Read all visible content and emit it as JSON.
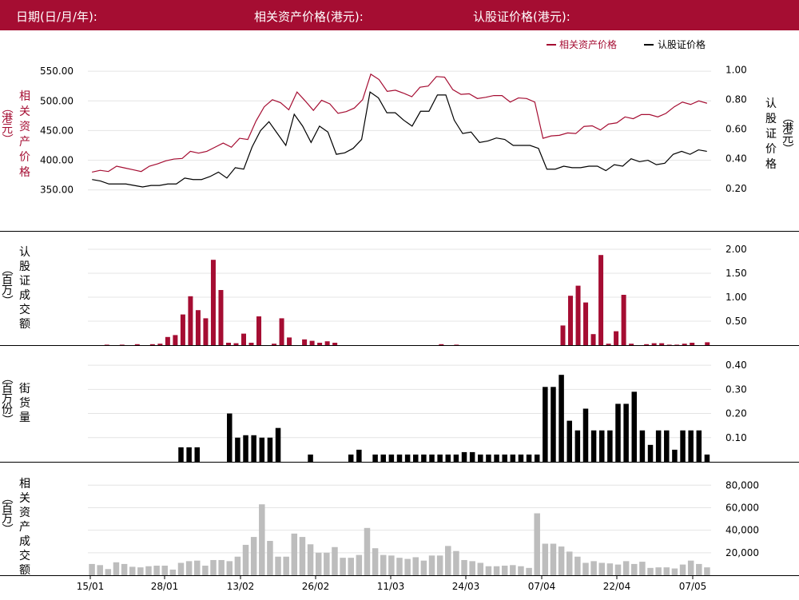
{
  "header": {
    "date_label": "日期(日/月/年):",
    "asset_price_label": "相关资产价格(港元):",
    "warrant_price_label": "认股证价格(港元):"
  },
  "colors": {
    "asset": "#a50d32",
    "warrant": "#000000",
    "outstanding": "#000000",
    "asset_volume": "#bdbdbd",
    "header_bg": "#a50d32"
  },
  "chart_data": [
    {
      "type": "line",
      "legend": [
        "相关资产价格",
        "认股证价格"
      ],
      "legend_placement": "top-right",
      "ylabel_left": "相关资产价格（港元）",
      "ylabel_right": "认股证价格（港元）",
      "yticks_left": [
        "550.00",
        "500.00",
        "450.00",
        "400.00",
        "350.00"
      ],
      "yticks_right": [
        "1.00",
        "0.80",
        "0.60",
        "0.40",
        "0.20"
      ],
      "ylim_left": [
        320,
        565
      ],
      "ylim_right": [
        0.07,
        1.05
      ],
      "grid": true,
      "series": [
        {
          "name": "相关资产价格",
          "axis": "left",
          "values": [
            380,
            383,
            381,
            390,
            387,
            384,
            381,
            390,
            394,
            399,
            402,
            403,
            415,
            412,
            415,
            422,
            429,
            422,
            437,
            435,
            466,
            490,
            502,
            497,
            485,
            515,
            500,
            484,
            501,
            495,
            479,
            482,
            488,
            502,
            545,
            536,
            516,
            518,
            513,
            507,
            523,
            525,
            541,
            540,
            519,
            511,
            512,
            504,
            506,
            509,
            509,
            498,
            505,
            504,
            498,
            437,
            441,
            442,
            446,
            445,
            457,
            458,
            451,
            461,
            463,
            473,
            470,
            477,
            477,
            473,
            479,
            490,
            498,
            494,
            500,
            496
          ]
        },
        {
          "name": "认股证价格",
          "axis": "right",
          "values": [
            0.26,
            0.25,
            0.23,
            0.23,
            0.23,
            0.22,
            0.21,
            0.22,
            0.22,
            0.23,
            0.23,
            0.27,
            0.26,
            0.26,
            0.28,
            0.31,
            0.27,
            0.34,
            0.33,
            0.48,
            0.59,
            0.65,
            0.57,
            0.49,
            0.7,
            0.62,
            0.51,
            0.62,
            0.58,
            0.43,
            0.44,
            0.47,
            0.53,
            0.85,
            0.81,
            0.71,
            0.71,
            0.66,
            0.62,
            0.72,
            0.72,
            0.83,
            0.83,
            0.66,
            0.57,
            0.58,
            0.51,
            0.52,
            0.54,
            0.53,
            0.49,
            0.49,
            0.49,
            0.47,
            0.33,
            0.33,
            0.35,
            0.34,
            0.34,
            0.35,
            0.35,
            0.32,
            0.36,
            0.35,
            0.4,
            0.38,
            0.39,
            0.36,
            0.37,
            0.43,
            0.45,
            0.43,
            0.46,
            0.45
          ]
        }
      ]
    },
    {
      "type": "bar",
      "ylabel_left": "认股证成交额（百万）",
      "yticks_right": [
        "2.00",
        "1.50",
        "1.00",
        "0.50"
      ],
      "ylim": [
        0,
        2.2
      ],
      "grid": true,
      "series": [
        {
          "name": "",
          "values": [
            0,
            0,
            0.01,
            0,
            0.01,
            0,
            0.02,
            0,
            0.02,
            0.03,
            0.17,
            0.21,
            0.64,
            1.02,
            0.73,
            0.56,
            1.78,
            1.15,
            0.05,
            0.04,
            0.24,
            0.05,
            0.6,
            0,
            0.03,
            0.56,
            0.16,
            0,
            0.12,
            0.09,
            0.05,
            0.08,
            0.05,
            0,
            0,
            0,
            0,
            0,
            0,
            0,
            0,
            0,
            0,
            0,
            0,
            0,
            0.02,
            0,
            0.01,
            0,
            0,
            0,
            0,
            0,
            0,
            0,
            0,
            0,
            0,
            0,
            0,
            0,
            0.41,
            1.03,
            1.24,
            0.89,
            0.23,
            1.88,
            0.03,
            0.29,
            1.05,
            0.03,
            0,
            0.02,
            0.04,
            0.04,
            0.01,
            0.01,
            0.03,
            0.05,
            0,
            0.06
          ]
        }
      ]
    },
    {
      "type": "bar",
      "ylabel_left": "街货量（百万份）",
      "yticks_right": [
        "0.40",
        "0.30",
        "0.20",
        "0.10"
      ],
      "ylim": [
        0,
        0.44
      ],
      "grid": true,
      "series": [
        {
          "name": "",
          "values": [
            0,
            0,
            0,
            0,
            0,
            0,
            0,
            0,
            0,
            0,
            0,
            0.06,
            0.06,
            0.06,
            0,
            0,
            0,
            0.2,
            0.1,
            0.11,
            0.11,
            0.1,
            0.1,
            0.14,
            0,
            0,
            0,
            0.03,
            0,
            0,
            0,
            0,
            0.03,
            0.05,
            0,
            0.03,
            0.03,
            0.03,
            0.03,
            0.03,
            0.03,
            0.03,
            0.03,
            0.03,
            0.03,
            0.03,
            0.04,
            0.04,
            0.03,
            0.03,
            0.03,
            0.03,
            0.03,
            0.03,
            0.03,
            0.03,
            0.31,
            0.31,
            0.36,
            0.17,
            0.13,
            0.22,
            0.13,
            0.13,
            0.13,
            0.24,
            0.24,
            0.29,
            0.13,
            0.07,
            0.13,
            0.13,
            0.05,
            0.13,
            0.13,
            0.13,
            0.03
          ]
        }
      ]
    },
    {
      "type": "bar",
      "ylabel_left": "相关资产成交额（百万）",
      "yticks_right": [
        "80,000",
        "60,000",
        "40,000",
        "20,000"
      ],
      "ylim": [
        0,
        88000
      ],
      "grid": true,
      "xticks": [
        "15/01",
        "28/01",
        "13/02",
        "26/02",
        "11/03",
        "24/03",
        "07/04",
        "22/04",
        "07/05"
      ],
      "series": [
        {
          "name": "",
          "values": [
            10000,
            9000,
            5500,
            11500,
            10000,
            7500,
            7000,
            8000,
            8500,
            8500,
            5000,
            11000,
            12500,
            13000,
            8500,
            13500,
            13500,
            12500,
            16500,
            27000,
            34000,
            63000,
            30500,
            16500,
            16500,
            37000,
            34000,
            27500,
            20000,
            20000,
            25000,
            15500,
            15500,
            18000,
            42000,
            24000,
            18000,
            17500,
            15500,
            14500,
            16000,
            13000,
            17500,
            17500,
            26000,
            21500,
            13500,
            12500,
            11000,
            8000,
            8000,
            8500,
            9000,
            8000,
            6500,
            55000,
            28000,
            28000,
            25500,
            21000,
            16500,
            11000,
            12500,
            11000,
            10500,
            9500,
            12500,
            10000,
            12000,
            6500,
            7000,
            7000,
            6000,
            9500,
            13000,
            10000,
            7000
          ]
        }
      ]
    }
  ]
}
